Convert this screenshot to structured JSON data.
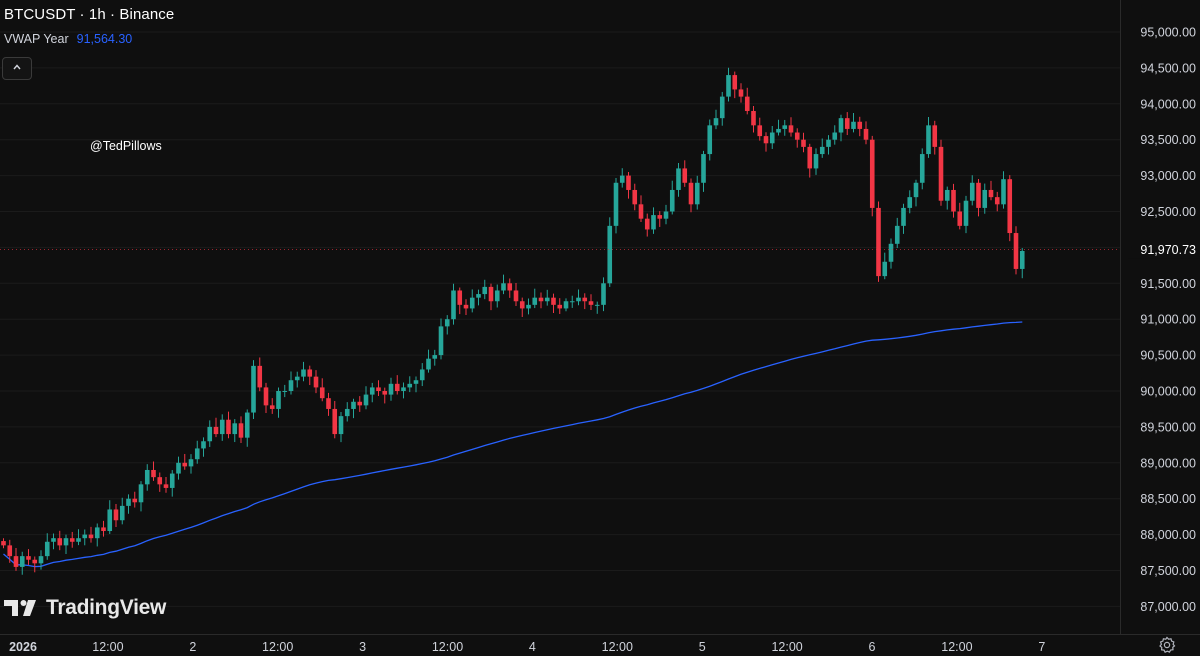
{
  "header": {
    "title": "BTCUSDT · 1h · Binance",
    "indicator_name": "VWAP Year",
    "indicator_value": "91,564.30",
    "collapse_glyph": "^"
  },
  "watermark": "@TedPillows",
  "brand": "TradingView",
  "icons": {
    "collapse": "chevron-up-icon",
    "logo": "tradingview-logo-icon",
    "settings": "gear-icon"
  },
  "colors": {
    "up": "#26a69a",
    "down": "#f23645",
    "vwap": "#2962ff",
    "background": "#0f0f0f"
  },
  "chart_data": {
    "type": "candlestick",
    "symbol": "BTCUSDT",
    "interval": "1h",
    "exchange": "Binance",
    "ylim": [
      86800,
      95300
    ],
    "y_ticks": [
      "95,000.00",
      "94,500.00",
      "94,000.00",
      "93,500.00",
      "93,000.00",
      "92,500.00",
      "92,000.00",
      "91,500.00",
      "91,000.00",
      "90,500.00",
      "90,000.00",
      "89,500.00",
      "89,000.00",
      "88,500.00",
      "88,000.00",
      "87,500.00",
      "87,000.00"
    ],
    "last_price": 91970.73,
    "last_price_label": "91,970.73",
    "x_ticks": [
      {
        "label": "2026",
        "hours": 0
      },
      {
        "label": "12:00",
        "hours": 12
      },
      {
        "label": "2",
        "hours": 24
      },
      {
        "label": "12:00",
        "hours": 36
      },
      {
        "label": "3",
        "hours": 48
      },
      {
        "label": "12:00",
        "hours": 60
      },
      {
        "label": "4",
        "hours": 72
      },
      {
        "label": "12:00",
        "hours": 84
      },
      {
        "label": "5",
        "hours": 96
      },
      {
        "label": "12:00",
        "hours": 108
      },
      {
        "label": "6",
        "hours": 120
      },
      {
        "label": "12:00",
        "hours": 132
      },
      {
        "label": "7",
        "hours": 144
      }
    ],
    "candles_close": [
      87850,
      87700,
      87550,
      87700,
      87650,
      87600,
      87700,
      87900,
      87950,
      87850,
      87950,
      87900,
      87950,
      88000,
      87950,
      88100,
      88050,
      88350,
      88200,
      88400,
      88500,
      88450,
      88700,
      88900,
      88800,
      88700,
      88650,
      88850,
      89000,
      88950,
      89050,
      89200,
      89300,
      89500,
      89400,
      89600,
      89400,
      89550,
      89350,
      89700,
      90350,
      90050,
      89800,
      89750,
      90000,
      90000,
      90150,
      90200,
      90300,
      90200,
      90050,
      89900,
      89750,
      89400,
      89650,
      89750,
      89850,
      89800,
      89950,
      90050,
      90000,
      89950,
      90100,
      90000,
      90050,
      90100,
      90150,
      90300,
      90450,
      90500,
      90900,
      91000,
      91400,
      91200,
      91150,
      91300,
      91350,
      91450,
      91250,
      91400,
      91500,
      91400,
      91250,
      91150,
      91200,
      91300,
      91250,
      91300,
      91200,
      91150,
      91250,
      91250,
      91300,
      91250,
      91200,
      91200,
      91500,
      92300,
      92900,
      93000,
      92800,
      92600,
      92400,
      92250,
      92450,
      92400,
      92500,
      92800,
      93100,
      92900,
      92600,
      92900,
      93300,
      93700,
      93800,
      94100,
      94400,
      94200,
      94100,
      93900,
      93700,
      93550,
      93450,
      93600,
      93650,
      93700,
      93600,
      93500,
      93400,
      93100,
      93300,
      93400,
      93500,
      93600,
      93800,
      93650,
      93750,
      93650,
      93500,
      92550,
      91600,
      91800,
      92050,
      92300,
      92550,
      92700,
      92900,
      93300,
      93700,
      93400,
      92650,
      92800,
      92500,
      92300,
      92650,
      92900,
      92550,
      92800,
      92700,
      92600,
      92950,
      92200,
      91700,
      91950
    ]
  }
}
